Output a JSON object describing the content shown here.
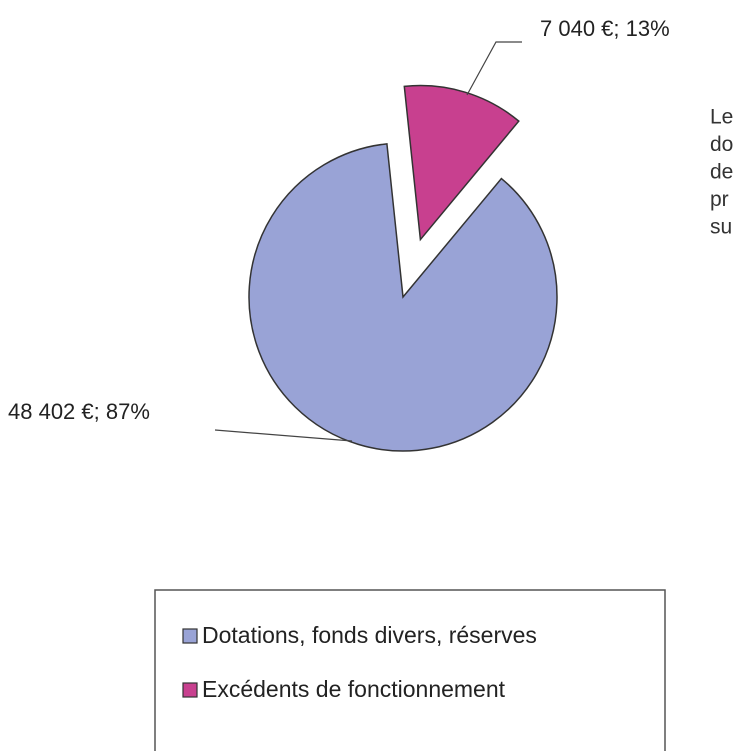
{
  "chart_data": {
    "type": "pie",
    "categories": [
      "Dotations, fonds divers, réserves",
      "Excédents de fonctionnement"
    ],
    "values": [
      48402,
      7040
    ],
    "value_labels": [
      "48 402 €; 87%",
      "7 040 €; 13%"
    ],
    "colors": [
      "#99a3d6",
      "#c8408f"
    ],
    "legend": "bottom",
    "annotations": [
      "Le",
      "do",
      "de",
      "pr",
      "su"
    ]
  }
}
